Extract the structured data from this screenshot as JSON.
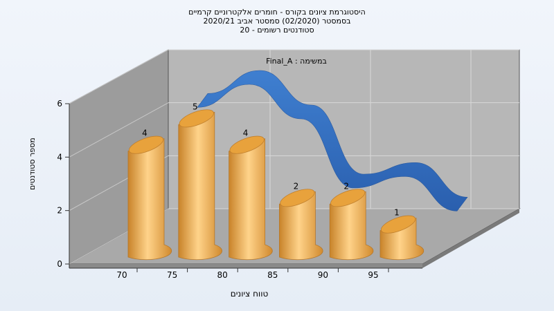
{
  "chart_data": {
    "type": "bar",
    "title_lines": [
      "היסטוגרמת ציונים בקורס - חומרים אלקטרוניים קרמיים",
      "בסמסטר  (02/2020)  סמסטר אביב 2020/21",
      "סטודנטים רשומים - 20"
    ],
    "subtitle": "Final_A : במשימה",
    "xlabel": "טווח ציונים",
    "ylabel": "מספר סטודנטים",
    "categories": [
      "70",
      "75",
      "80",
      "85",
      "90",
      "95"
    ],
    "values": [
      4,
      5,
      4,
      2,
      2,
      1
    ],
    "data_labels": [
      "4",
      "5",
      "4",
      "2",
      "2",
      "1"
    ],
    "yticks": [
      "0",
      "2",
      "4",
      "6"
    ],
    "ylim": [
      0,
      6
    ],
    "series": [
      {
        "kind": "bar",
        "color": "#f0b040",
        "values": [
          4,
          5,
          4,
          2,
          2,
          1
        ]
      },
      {
        "kind": "smoothed-ribbon",
        "color": "#2f6fbf",
        "values": [
          5,
          6,
          4.5,
          1.5,
          2,
          0.5
        ]
      }
    ],
    "grid": true
  }
}
